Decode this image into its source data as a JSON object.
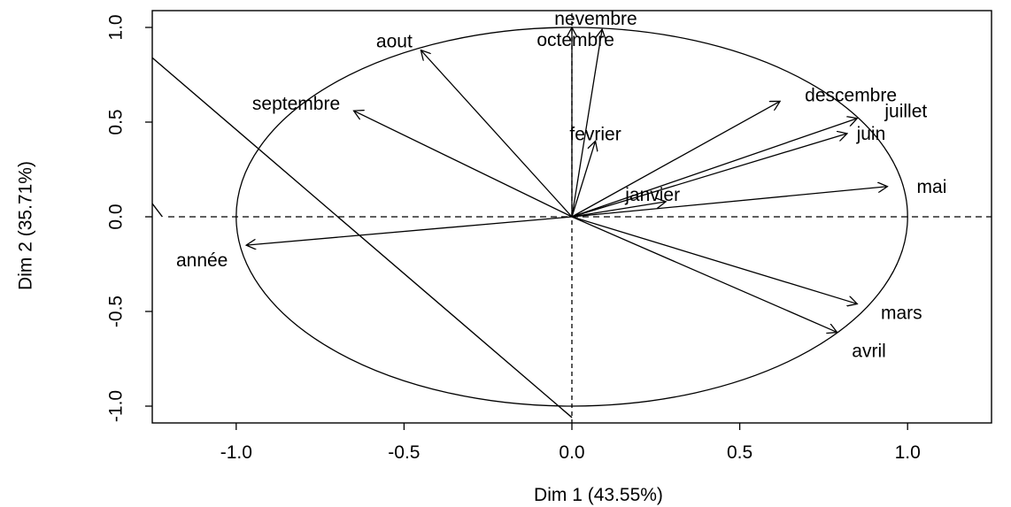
{
  "chart_data": {
    "type": "scatter",
    "subtype": "pca-correlation-circle",
    "title": "",
    "xlabel": "Dim 1 (43.55%)",
    "ylabel": "Dim 2 (35.71%)",
    "xlim": [
      -1.25,
      1.25
    ],
    "ylim": [
      -1.0,
      1.0
    ],
    "x_ticks": [
      -1.0,
      -0.5,
      0.0,
      0.5,
      1.0
    ],
    "x_tick_labels": [
      "-1.0",
      "-0.5",
      "0.0",
      "0.5",
      "1.0"
    ],
    "y_ticks": [
      -1.0,
      -0.5,
      0.0,
      0.5,
      1.0
    ],
    "y_tick_labels": [
      "-1.0",
      "-0.5",
      "0.0",
      "0.5",
      "1.0"
    ],
    "unit_circle": true,
    "reference_lines": [
      "x=0 dashed",
      "y=0 dashed"
    ],
    "grid": false,
    "variables": [
      {
        "name": "nevembre",
        "x": 0.0,
        "y": 1.0,
        "label_dx": 0.0,
        "label_dy": 0.0
      },
      {
        "name": "octembre",
        "x": 0.09,
        "y": 0.99,
        "label_dx": 0.0,
        "label_dy": 0.0
      },
      {
        "name": "aout",
        "x": -0.45,
        "y": 0.88,
        "label_dx": 0.0,
        "label_dy": 0.0
      },
      {
        "name": "septembre",
        "x": -0.65,
        "y": 0.56,
        "label_dx": 0.0,
        "label_dy": 0.0
      },
      {
        "name": "fevrier",
        "x": 0.07,
        "y": 0.4,
        "label_dx": 0.0,
        "label_dy": 0.0
      },
      {
        "name": "descembre",
        "x": 0.62,
        "y": 0.61,
        "label_dx": 0.0,
        "label_dy": 0.0
      },
      {
        "name": "juillet",
        "x": 0.85,
        "y": 0.52,
        "label_dx": 0.0,
        "label_dy": 0.0
      },
      {
        "name": "juin",
        "x": 0.82,
        "y": 0.44,
        "label_dx": 0.0,
        "label_dy": 0.0
      },
      {
        "name": "janvier",
        "x": 0.28,
        "y": 0.08,
        "label_dx": 0.0,
        "label_dy": 0.0
      },
      {
        "name": "mai",
        "x": 0.94,
        "y": 0.16,
        "label_dx": 0.0,
        "label_dy": 0.0
      },
      {
        "name": "année",
        "x": -0.97,
        "y": -0.15,
        "label_dx": 0.0,
        "label_dy": 0.0
      },
      {
        "name": "mars",
        "x": 0.85,
        "y": -0.46,
        "label_dx": 0.0,
        "label_dy": 0.0
      },
      {
        "name": "avril",
        "x": 0.79,
        "y": -0.61,
        "label_dx": 0.0,
        "label_dy": 0.0
      }
    ],
    "extra_lines": [
      {
        "x1": -1.25,
        "y1": 0.84,
        "x2": 0.0,
        "y2": -1.06
      },
      {
        "x1": -1.25,
        "y1": 0.07,
        "x2": -1.22,
        "y2": 0.0
      }
    ]
  }
}
